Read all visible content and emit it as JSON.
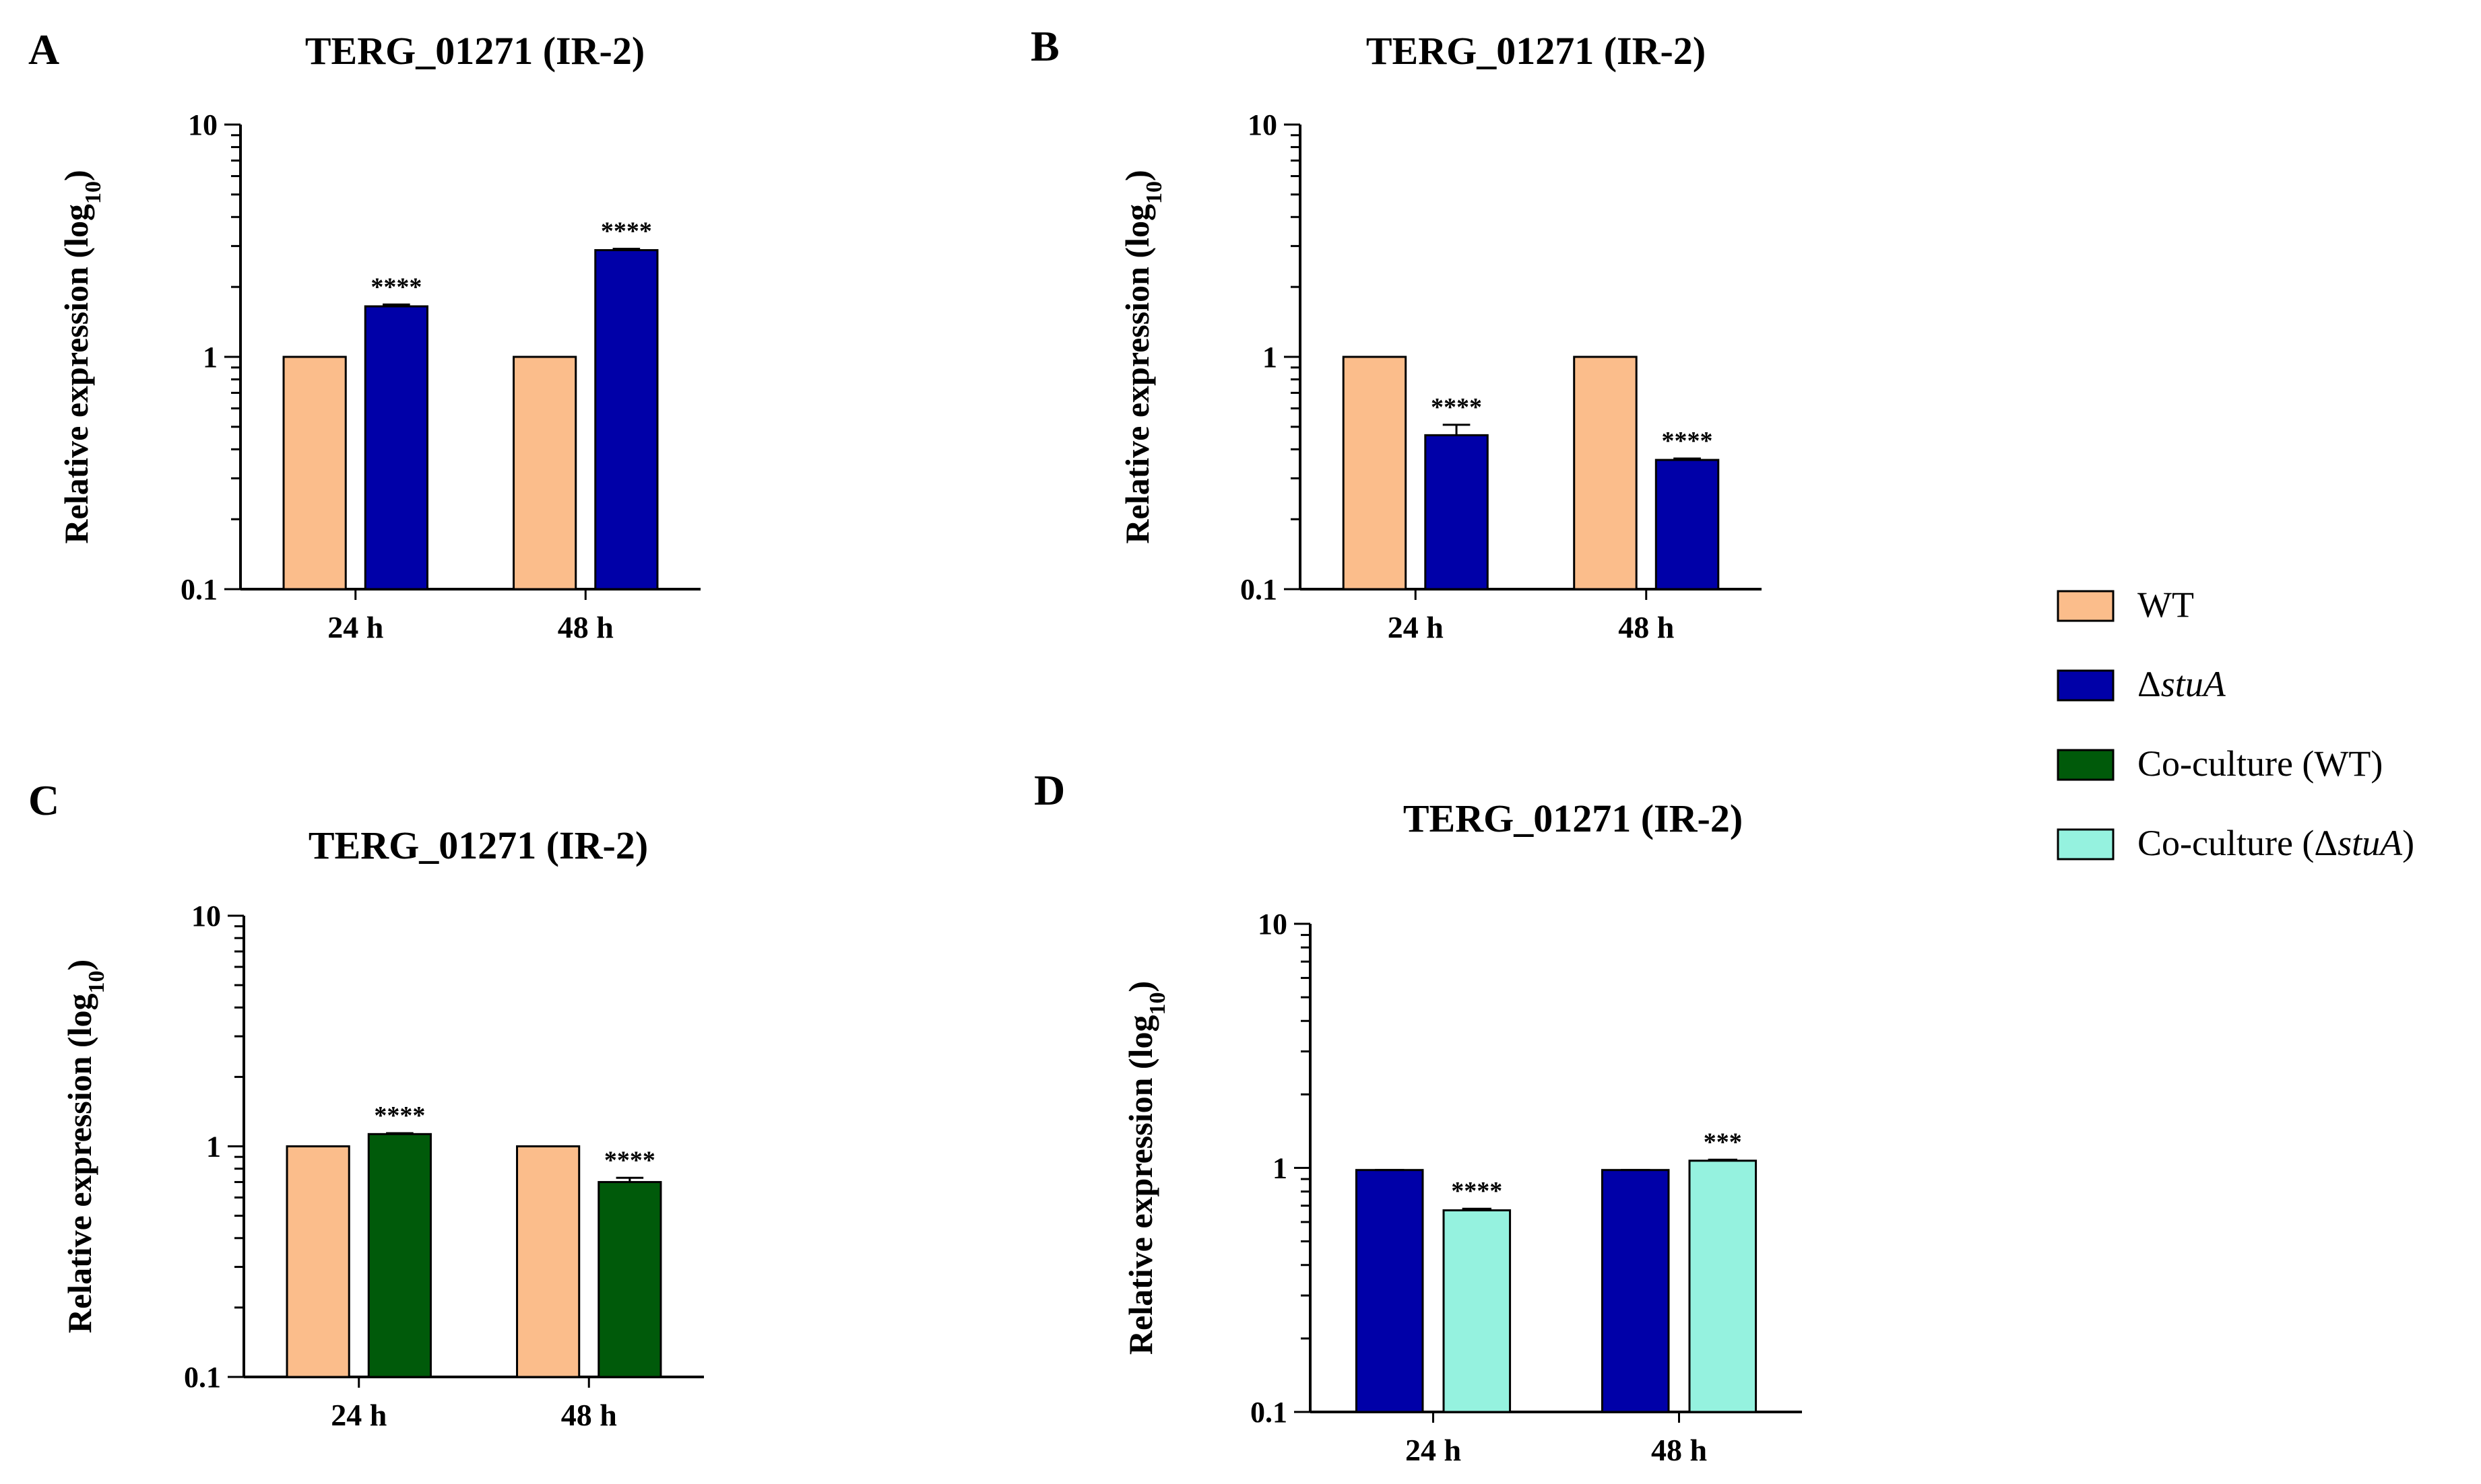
{
  "colors": {
    "WT": "#FBBD8B",
    "stuA": "#0000A8",
    "coWT": "#005A0A",
    "coStuA": "#95F2DF"
  },
  "legend": {
    "items": [
      {
        "key": "WT",
        "label": "WT"
      },
      {
        "key": "stuA",
        "prefix": "Δ",
        "italic": "stuA",
        "suffix": ""
      },
      {
        "key": "coWT",
        "label": "Co-culture (WT)"
      },
      {
        "key": "coStuA",
        "prefix": "Co-culture (Δ",
        "italic": "stuA",
        "suffix": ")"
      }
    ]
  },
  "chart_data": [
    {
      "panel": "A",
      "type": "bar",
      "title": "TERG_01271 (IR-2)",
      "ylabel": "Relative expression (log",
      "ylabel_sub": "10",
      "ylabel_end": ")",
      "yscale": "log",
      "ylim": [
        0.1,
        10
      ],
      "yticks": [
        "0.1",
        "1",
        "10"
      ],
      "categories": [
        "24 h",
        "48 h"
      ],
      "series": [
        {
          "key": "WT",
          "values": [
            1.0,
            1.0
          ],
          "err": [
            0,
            0
          ]
        },
        {
          "key": "stuA",
          "values": [
            1.65,
            2.88
          ],
          "err": [
            0.03,
            0.04
          ]
        }
      ],
      "significance": [
        "****",
        "****"
      ]
    },
    {
      "panel": "B",
      "type": "bar",
      "title": "TERG_01271 (IR-2)",
      "ylabel": "Relative expression (log",
      "ylabel_sub": "10",
      "ylabel_end": ")",
      "yscale": "log",
      "ylim": [
        0.1,
        10
      ],
      "yticks": [
        "0.1",
        "1",
        "10"
      ],
      "categories": [
        "24 h",
        "48 h"
      ],
      "series": [
        {
          "key": "WT",
          "values": [
            1.0,
            1.0
          ],
          "err": [
            0,
            0
          ]
        },
        {
          "key": "stuA",
          "values": [
            0.46,
            0.36
          ],
          "err": [
            0.05,
            0.005
          ]
        }
      ],
      "significance": [
        "****",
        "****"
      ]
    },
    {
      "panel": "C",
      "type": "bar",
      "title": "TERG_01271 (IR-2)",
      "ylabel": "Relative expression (log",
      "ylabel_sub": "10",
      "ylabel_end": ")",
      "yscale": "log",
      "ylim": [
        0.1,
        10
      ],
      "yticks": [
        "0.1",
        "1",
        "10"
      ],
      "categories": [
        "24 h",
        "48 h"
      ],
      "series": [
        {
          "key": "WT",
          "values": [
            1.0,
            1.0
          ],
          "err": [
            0,
            0
          ]
        },
        {
          "key": "coWT",
          "values": [
            1.13,
            0.7
          ],
          "err": [
            0.01,
            0.03
          ]
        }
      ],
      "significance": [
        "****",
        "****"
      ]
    },
    {
      "panel": "D",
      "type": "bar",
      "title": "TERG_01271 (IR-2)",
      "ylabel": "Relative expression (log",
      "ylabel_sub": "10",
      "ylabel_end": ")",
      "yscale": "log",
      "ylim": [
        0.1,
        10
      ],
      "yticks": [
        "0.1",
        "1",
        "10"
      ],
      "categories": [
        "24 h",
        "48 h"
      ],
      "series": [
        {
          "key": "stuA",
          "values": [
            0.98,
            0.98
          ],
          "err": [
            0,
            0
          ]
        },
        {
          "key": "coStuA",
          "values": [
            0.67,
            1.07
          ],
          "err": [
            0.01,
            0.01
          ]
        }
      ],
      "significance": [
        "****",
        "***"
      ]
    }
  ]
}
